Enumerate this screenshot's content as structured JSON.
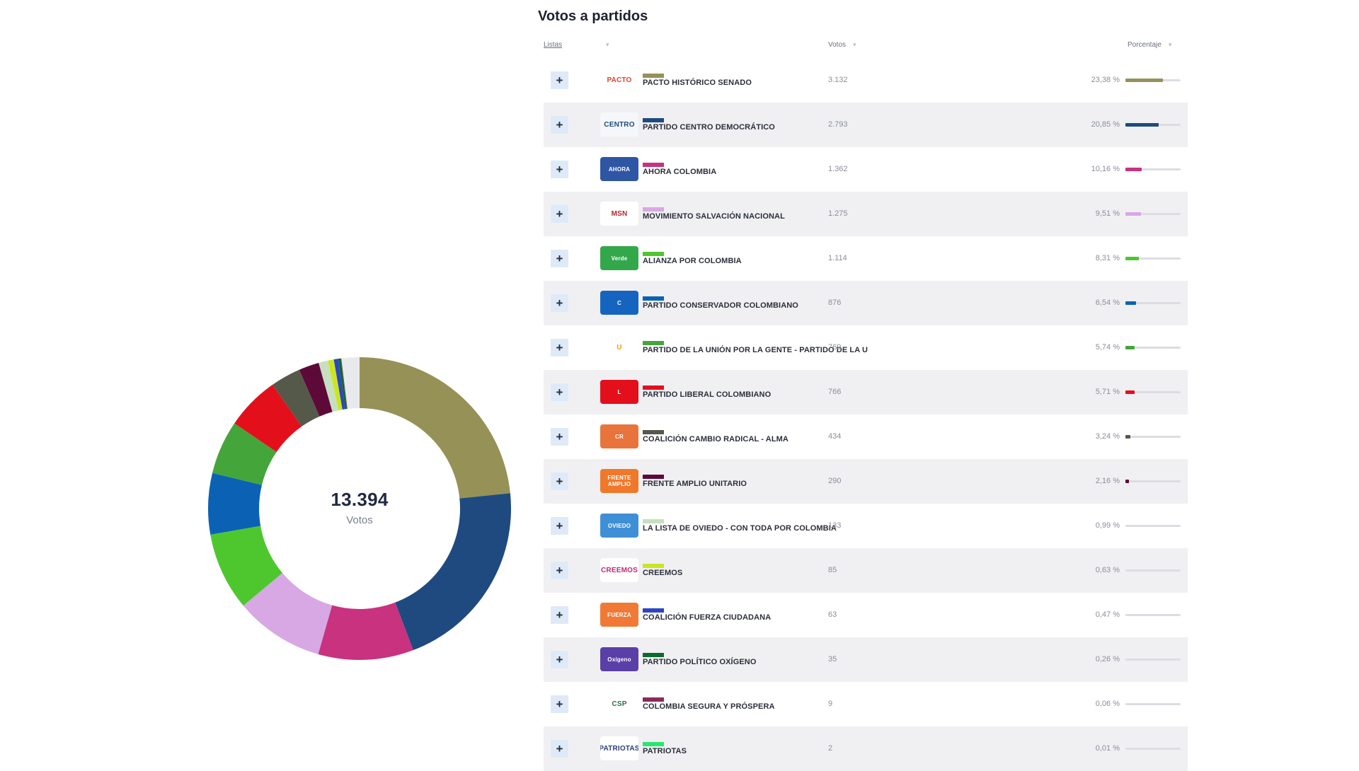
{
  "panel": {
    "title": "Votos a partidos",
    "headers": {
      "lists": "Listas",
      "votes": "Votos",
      "percentage": "Porcentaje"
    },
    "sort_icon": "sort-icon",
    "expand_icon": "plus-icon",
    "expand_label": "+"
  },
  "donut": {
    "total": "13.394",
    "unit": "Votos",
    "remainder_color": "#e8e9ec"
  },
  "rows": [
    {
      "name": "PACTO HISTÓRICO SENADO",
      "votes": "3.132",
      "pct": "23,38 %",
      "pct_value": 23.38,
      "color": "#969257",
      "logo_text": "PACTO",
      "logo_bg": "#ffffff",
      "logo_fg": "#e5432a"
    },
    {
      "name": "PARTIDO CENTRO DEMOCRÁTICO",
      "votes": "2.793",
      "pct": "20,85 %",
      "pct_value": 20.85,
      "color": "#1e4a7f",
      "logo_text": "CENTRO",
      "logo_bg": "#f5f7fb",
      "logo_fg": "#1e4a7f"
    },
    {
      "name": "AHORA COLOMBIA",
      "votes": "1.362",
      "pct": "10,16 %",
      "pct_value": 10.16,
      "color": "#c8327f",
      "logo_text": "AHORA",
      "logo_bg": "#2f56a5",
      "logo_fg": "#ffffff"
    },
    {
      "name": "MOVIMIENTO SALVACIÓN NACIONAL",
      "votes": "1.275",
      "pct": "9,51 %",
      "pct_value": 9.51,
      "color": "#d8a8e4",
      "logo_text": "MSN",
      "logo_bg": "#ffffff",
      "logo_fg": "#b3262e"
    },
    {
      "name": "ALIANZA POR COLOMBIA",
      "votes": "1.114",
      "pct": "8,31 %",
      "pct_value": 8.31,
      "color": "#4ec72f",
      "logo_text": "Verde",
      "logo_bg": "#33a84a",
      "logo_fg": "#ffffff"
    },
    {
      "name": "PARTIDO CONSERVADOR COLOMBIANO",
      "votes": "876",
      "pct": "6,54 %",
      "pct_value": 6.54,
      "color": "#0b62b5",
      "logo_text": "C",
      "logo_bg": "#1565c0",
      "logo_fg": "#ffffff"
    },
    {
      "name": "PARTIDO DE LA UNIÓN POR LA GENTE - PARTIDO DE LA U",
      "votes": "769",
      "pct": "5,74 %",
      "pct_value": 5.74,
      "color": "#44a63a",
      "logo_text": "U",
      "logo_bg": "#ffffff",
      "logo_fg": "#f39c12"
    },
    {
      "name": "PARTIDO LIBERAL COLOMBIANO",
      "votes": "766",
      "pct": "5,71 %",
      "pct_value": 5.71,
      "color": "#e3101c",
      "logo_text": "L",
      "logo_bg": "#e3101c",
      "logo_fg": "#ffffff"
    },
    {
      "name": "COALICIÓN CAMBIO RADICAL - ALMA",
      "votes": "434",
      "pct": "3,24 %",
      "pct_value": 3.24,
      "color": "#55594a",
      "logo_text": "CR",
      "logo_bg": "#e8743b",
      "logo_fg": "#ffffff"
    },
    {
      "name": "FRENTE AMPLIO UNITARIO",
      "votes": "290",
      "pct": "2,16 %",
      "pct_value": 2.16,
      "color": "#5e0a38",
      "logo_text": "FRENTE AMPLIO",
      "logo_bg": "#f0782a",
      "logo_fg": "#ffffff"
    },
    {
      "name": "LA LISTA DE OVIEDO - CON TODA POR COLOMBIA",
      "votes": "133",
      "pct": "0,99 %",
      "pct_value": 0.99,
      "color": "#c6dfc0",
      "logo_text": "OVIEDO",
      "logo_bg": "#3f8fd6",
      "logo_fg": "#ffffff"
    },
    {
      "name": "CREEMOS",
      "votes": "85",
      "pct": "0,63 %",
      "pct_value": 0.63,
      "color": "#cbe61f",
      "logo_text": "CREEMOS",
      "logo_bg": "#ffffff",
      "logo_fg": "#c2287a"
    },
    {
      "name": "COALICIÓN FUERZA CIUDADANA",
      "votes": "63",
      "pct": "0,47 %",
      "pct_value": 0.47,
      "color": "#2c46c4",
      "logo_text": "FUERZA",
      "logo_bg": "#f07a35",
      "logo_fg": "#ffffff"
    },
    {
      "name": "PARTIDO POLÍTICO OXÍGENO",
      "votes": "35",
      "pct": "0,26 %",
      "pct_value": 0.26,
      "color": "#0c6b2c",
      "logo_text": "Oxígeno",
      "logo_bg": "#5a3fa8",
      "logo_fg": "#ffffff"
    },
    {
      "name": "COLOMBIA SEGURA Y PRÓSPERA",
      "votes": "9",
      "pct": "0,06 %",
      "pct_value": 0.06,
      "color": "#8b2a5c",
      "logo_text": "CSP",
      "logo_bg": "#ffffff",
      "logo_fg": "#2f6b4a"
    },
    {
      "name": "PATRIOTAS",
      "votes": "2",
      "pct": "0,01 %",
      "pct_value": 0.01,
      "color": "#27e86f",
      "logo_text": "PATRIOTAS",
      "logo_bg": "#ffffff",
      "logo_fg": "#2a3f7a"
    }
  ],
  "chart_data": {
    "type": "pie",
    "title": "Votos a partidos",
    "center_label": "13.394 Votos",
    "total": 13394,
    "categories": [
      "PACTO HISTÓRICO SENADO",
      "PARTIDO CENTRO DEMOCRÁTICO",
      "AHORA COLOMBIA",
      "MOVIMIENTO SALVACIÓN NACIONAL",
      "ALIANZA POR COLOMBIA",
      "PARTIDO CONSERVADOR COLOMBIANO",
      "PARTIDO DE LA UNIÓN POR LA GENTE - PARTIDO DE LA U",
      "PARTIDO LIBERAL COLOMBIANO",
      "COALICIÓN CAMBIO RADICAL - ALMA",
      "FRENTE AMPLIO UNITARIO",
      "LA LISTA DE OVIEDO - CON TODA POR COLOMBIA",
      "CREEMOS",
      "COALICIÓN FUERZA CIUDADANA",
      "PARTIDO POLÍTICO OXÍGENO",
      "COLOMBIA SEGURA Y PRÓSPERA",
      "PATRIOTAS"
    ],
    "values": [
      3132,
      2793,
      1362,
      1275,
      1114,
      876,
      769,
      766,
      434,
      290,
      133,
      85,
      63,
      35,
      9,
      2
    ],
    "percentages": [
      23.38,
      20.85,
      10.16,
      9.51,
      8.31,
      6.54,
      5.74,
      5.71,
      3.24,
      2.16,
      0.99,
      0.63,
      0.47,
      0.26,
      0.06,
      0.01
    ],
    "colors": [
      "#969257",
      "#1e4a7f",
      "#c8327f",
      "#d8a8e4",
      "#4ec72f",
      "#0b62b5",
      "#44a63a",
      "#e3101c",
      "#55594a",
      "#5e0a38",
      "#c6dfc0",
      "#cbe61f",
      "#2c46c4",
      "#0c6b2c",
      "#8b2a5c",
      "#27e86f"
    ],
    "donut": true
  }
}
